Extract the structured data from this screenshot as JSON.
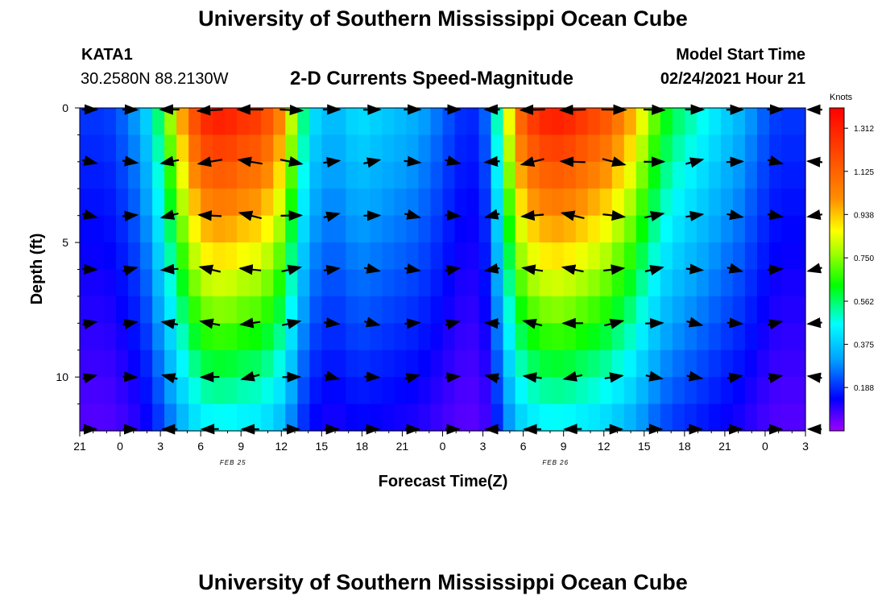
{
  "header": {
    "title": "University of Southern Mississippi Ocean Cube",
    "station_id": "KATA1",
    "coordinates": "30.2580N 88.2130W",
    "plot_title": "2-D Currents Speed-Magnitude",
    "model_start_label": "Model Start Time",
    "model_start_time": "02/24/2021 Hour 21"
  },
  "footer": {
    "title": "University of Southern Mississippi Ocean Cube"
  },
  "chart_data": {
    "type": "heatmap",
    "title": "2-D Currents Speed-Magnitude",
    "xlabel": "Forecast Time(Z)",
    "ylabel": "Depth (ft)",
    "x_tick_labels": [
      "21",
      "0",
      "3",
      "6",
      "9",
      "12",
      "15",
      "18",
      "21",
      "0",
      "3",
      "6",
      "9",
      "12",
      "15",
      "18",
      "21",
      "0",
      "3"
    ],
    "x_range_hours": [
      0,
      54
    ],
    "date_labels": [
      {
        "text": "FEB 25",
        "hour": 15
      },
      {
        "text": "FEB 26",
        "hour": 39
      }
    ],
    "y_tick_labels": [
      "0",
      "5",
      "10"
    ],
    "y_ticks": [
      0,
      5,
      10
    ],
    "y_range": [
      0,
      12
    ],
    "colorbar": {
      "unit_label": "Knots",
      "tick_labels": [
        "0.188",
        "0.375",
        "0.562",
        "0.750",
        "0.938",
        "1.125",
        "1.312"
      ],
      "ticks": [
        0.188,
        0.375,
        0.562,
        0.75,
        0.938,
        1.125,
        1.312
      ],
      "range": [
        0,
        1.4
      ]
    },
    "speed_profile_hours": [
      0,
      1,
      2,
      3,
      4,
      5,
      6,
      7,
      8,
      9,
      10,
      11,
      12,
      13,
      14,
      15,
      16,
      17,
      18,
      19,
      20,
      21,
      22,
      23,
      24,
      25,
      26,
      27,
      28,
      29,
      30,
      31,
      32,
      33,
      34,
      35,
      36,
      37,
      38,
      39,
      40,
      41,
      42,
      43,
      44,
      45,
      46,
      47,
      48,
      49,
      50,
      51,
      52,
      53,
      54
    ],
    "speed_profile_knots": [
      0.2,
      0.2,
      0.2,
      0.24,
      0.3,
      0.4,
      0.6,
      0.85,
      1.1,
      1.3,
      1.35,
      1.35,
      1.3,
      1.28,
      1.2,
      1.05,
      0.75,
      0.45,
      0.38,
      0.35,
      0.4,
      0.42,
      0.4,
      0.38,
      0.36,
      0.34,
      0.3,
      0.25,
      0.2,
      0.18,
      0.2,
      0.5,
      0.9,
      1.2,
      1.3,
      1.35,
      1.35,
      1.3,
      1.25,
      1.2,
      1.1,
      1.0,
      0.85,
      0.7,
      0.6,
      0.55,
      0.5,
      0.45,
      0.4,
      0.36,
      0.3,
      0.24,
      0.2,
      0.2,
      0.2
    ],
    "vectors": {
      "depths_ft": [
        0,
        2,
        4,
        6,
        8,
        10,
        12
      ],
      "hours": [
        0,
        3,
        6,
        9,
        12,
        15,
        18,
        21,
        24,
        27,
        30,
        33,
        36,
        39,
        42,
        45,
        48,
        51,
        54
      ],
      "note": "arrows indicate current direction; length scaled by speed"
    }
  }
}
